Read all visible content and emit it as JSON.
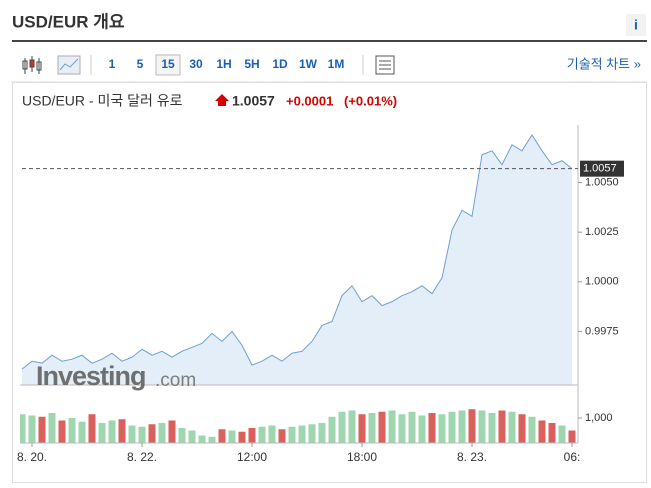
{
  "header": {
    "title": "USD/EUR 개요",
    "info": "i"
  },
  "toolbar": {
    "intervals": [
      "1",
      "5",
      "15",
      "30",
      "1H",
      "5H",
      "1D",
      "1W",
      "1M"
    ],
    "selected": "15",
    "link": "기술적 차트 »"
  },
  "quote": {
    "name": "USD/EUR - 미국 달러 유로",
    "price": "1.0057",
    "change": "+0.0001",
    "change_pct": "(+0.01%)"
  },
  "watermark": {
    "brand": "Investing",
    "domain": ".com"
  },
  "chart_data": {
    "type": "line",
    "categories": [
      null,
      "8. 20.",
      null,
      null,
      null,
      null,
      null,
      null,
      null,
      null,
      null,
      null,
      "8. 22.",
      null,
      null,
      null,
      null,
      null,
      null,
      null,
      null,
      null,
      null,
      "12:00",
      null,
      null,
      null,
      null,
      null,
      null,
      null,
      null,
      null,
      null,
      "18:00",
      null,
      null,
      null,
      null,
      null,
      null,
      null,
      null,
      null,
      null,
      "8. 23.",
      null,
      null,
      null,
      null,
      null,
      null,
      null,
      null,
      null,
      "06:"
    ],
    "series": [
      {
        "color": "#6f9fd8",
        "values": [
          0.9956,
          0.996,
          0.9959,
          0.9963,
          0.996,
          0.9961,
          0.9963,
          0.9959,
          0.9961,
          0.9964,
          0.996,
          0.9962,
          0.9966,
          0.9963,
          0.9965,
          0.9962,
          0.9965,
          0.9967,
          0.9969,
          0.9974,
          0.997,
          0.9975,
          0.9968,
          0.9958,
          0.996,
          0.9963,
          0.996,
          0.9964,
          0.9965,
          0.997,
          0.9978,
          0.998,
          0.9993,
          0.9998,
          0.999,
          0.9993,
          0.9988,
          0.999,
          0.9993,
          0.9995,
          0.9998,
          0.9994,
          1.0002,
          1.0026,
          1.0036,
          1.0033,
          1.0064,
          1.0066,
          1.0059,
          1.0069,
          1.0066,
          1.0074,
          1.0066,
          1.0059,
          1.0061,
          1.0057
        ]
      }
    ],
    "ylim": [
      0.9948,
      1.0079
    ],
    "yticks": [
      0.9975,
      {
        "value": 1.0,
        "label": "1.0000"
      },
      1.0025,
      {
        "value": 1.005,
        "label": "1.0050"
      }
    ],
    "last_value": 1.0057,
    "area_color": "#e4eef8",
    "volume": {
      "values": [
        1150,
        1100,
        1050,
        1200,
        900,
        1000,
        850,
        1150,
        800,
        900,
        950,
        700,
        650,
        750,
        800,
        900,
        600,
        500,
        300,
        250,
        550,
        500,
        450,
        600,
        650,
        700,
        550,
        650,
        700,
        750,
        800,
        1050,
        1250,
        1300,
        1150,
        1200,
        1250,
        1300,
        1150,
        1250,
        1100,
        1200,
        1150,
        1250,
        1300,
        1350,
        1300,
        1200,
        1300,
        1250,
        1150,
        1050,
        900,
        800,
        700,
        500
      ],
      "ylim": [
        0,
        1720
      ],
      "yticks": [
        {
          "value": 1000,
          "label": "1,000"
        }
      ],
      "up_color": "#9fd6b0",
      "down_color": "#d9605c"
    }
  }
}
